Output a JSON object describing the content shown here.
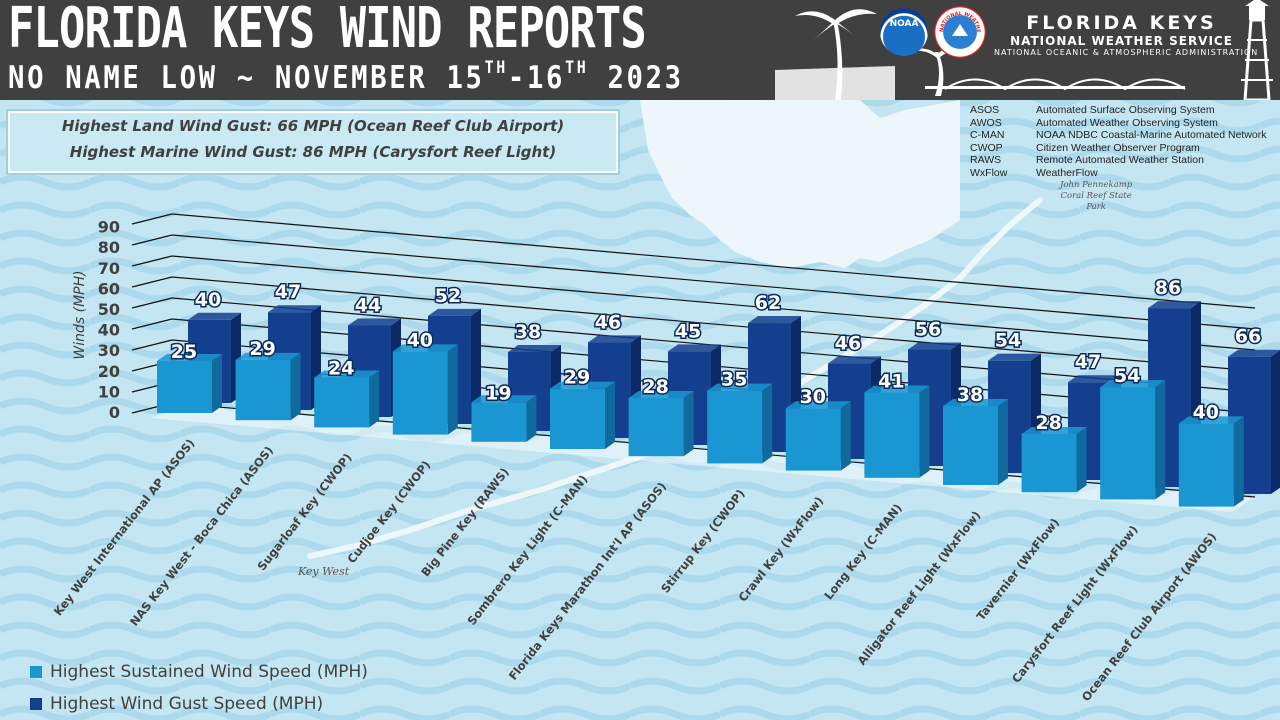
{
  "header": {
    "title": "FLORIDA KEYS WIND REPORTS",
    "subtitle_a": "NO NAME LOW  ~  NOVEMBER 15",
    "sup_a": "TH",
    "subtitle_b": "-16",
    "sup_b": "TH",
    "subtitle_c": " 2023",
    "agency_line1": "FLORIDA KEYS",
    "agency_line2": "NATIONAL WEATHER SERVICE",
    "agency_line3": "NATIONAL OCEANIC & ATMOSPHERIC ADMINISTRATION",
    "noaa_logo": "NOAA",
    "nws_logo": "NATIONAL WEATHER SERVICE"
  },
  "highlights": {
    "land": "Highest Land Wind Gust: 66 MPH (Ocean Reef Club Airport)",
    "marine": "Highest Marine Wind Gust: 86 MPH (Carysfort Reef Light)"
  },
  "abbreviations": [
    {
      "key": "ASOS",
      "desc": "Automated Surface Observing System"
    },
    {
      "key": "AWOS",
      "desc": "Automated Weather Observing System"
    },
    {
      "key": "C-MAN",
      "desc": "NOAA NDBC Coastal-Marine Automated Network"
    },
    {
      "key": "CWOP",
      "desc": "Citizen Weather Observer Program"
    },
    {
      "key": "RAWS",
      "desc": "Remote Automated Weather Station"
    },
    {
      "key": "WxFlow",
      "desc": "WeatherFlow"
    }
  ],
  "map_labels": {
    "park_line1": "John Pennekamp",
    "park_line2": "Coral Reef State",
    "park_line3": "Park",
    "key_west": "Key West"
  },
  "colors": {
    "banner": "#404040",
    "sustained": "#1a96d2",
    "gust": "#143f8f",
    "water": "#bfe3f0"
  },
  "chart_data": {
    "type": "bar",
    "ylabel": "Winds (MPH)",
    "ylim": [
      0,
      90
    ],
    "yticks": [
      0,
      10,
      20,
      30,
      40,
      50,
      60,
      70,
      80,
      90
    ],
    "categories": [
      "Key West International AP (ASOS)",
      "NAS Key West - Boca Chica (ASOS)",
      "Sugarloaf Key (CWOP)",
      "Cudjoe Key (CWOP)",
      "Big Pine Key (RAWS)",
      "Sombrero Key Light (C-MAN)",
      "Florida Keys Marathon Int'l AP (ASOS)",
      "Stirrup Key (CWOP)",
      "Crawl Key (WxFlow)",
      "Long Key (C-MAN)",
      "Alligator Reef Light (WxFlow)",
      "Tavernier (WxFlow)",
      "Carysfort Reef Light (WxFlow)",
      "Ocean Reef Club Airport (AWOS)"
    ],
    "series": [
      {
        "name": "Highest Sustained Wind Speed (MPH)",
        "values": [
          25,
          29,
          24,
          40,
          19,
          29,
          28,
          35,
          30,
          41,
          38,
          28,
          54,
          40
        ]
      },
      {
        "name": "Highest Wind Gust Speed (MPH)",
        "values": [
          40,
          47,
          44,
          52,
          38,
          46,
          45,
          62,
          46,
          56,
          54,
          47,
          86,
          66
        ]
      }
    ],
    "legend_position": "bottom-left",
    "grid": true
  }
}
